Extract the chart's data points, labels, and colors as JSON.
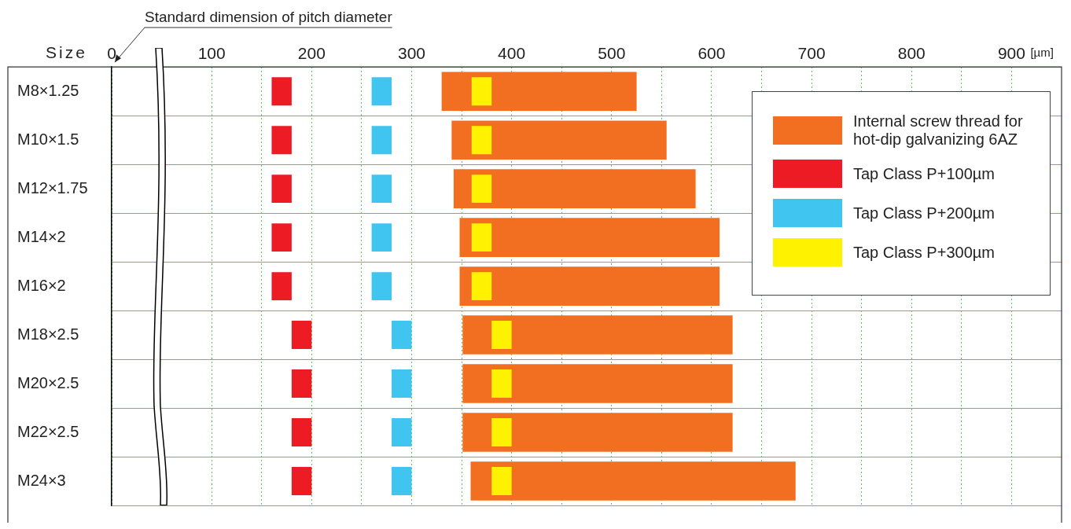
{
  "chart_data": {
    "type": "bar",
    "orientation": "horizontal",
    "ylabel": "Size",
    "xlabel": "[µm]",
    "annotations": [
      "Standard dimension of pitch diameter"
    ],
    "categories": [
      "M8×1.25",
      "M10×1.5",
      "M12×1.75",
      "M14×2",
      "M16×2",
      "M18×2.5",
      "M20×2.5",
      "M22×2.5",
      "M24×3"
    ],
    "series": [
      {
        "name": "Internal screw thread for hot-dip galvanizing 6AZ",
        "color": "#f26f21",
        "base": [
          330,
          340,
          342,
          348,
          348,
          351,
          351,
          351,
          359
        ],
        "values": [
          195,
          215,
          242,
          260,
          260,
          270,
          270,
          270,
          325
        ]
      },
      {
        "name": "Tap Class P+100µm",
        "color": "#ed1c24",
        "base": [
          160,
          160,
          160,
          160,
          160,
          180,
          180,
          180,
          180
        ],
        "values": [
          20,
          20,
          20,
          20,
          20,
          20,
          20,
          20,
          20
        ]
      },
      {
        "name": "Tap Class P+200µm",
        "color": "#40c4f0",
        "base": [
          260,
          260,
          260,
          260,
          260,
          280,
          280,
          280,
          280
        ],
        "values": [
          20,
          20,
          20,
          20,
          20,
          20,
          20,
          20,
          20
        ]
      },
      {
        "name": "Tap Class P+300µm",
        "color": "#fff200",
        "base": [
          360,
          360,
          360,
          360,
          360,
          380,
          380,
          380,
          380
        ],
        "values": [
          20,
          20,
          20,
          20,
          20,
          20,
          20,
          20,
          20
        ]
      }
    ],
    "xlim": [
      0,
      950
    ],
    "xticks": [
      0,
      100,
      {
        "value": 150,
        "label": null
      },
      200,
      {
        "value": 250,
        "label": null
      },
      300,
      {
        "value": 350,
        "label": null
      },
      400,
      {
        "value": 450,
        "label": null
      },
      500,
      {
        "value": 550,
        "label": null
      },
      600,
      {
        "value": 650,
        "label": null
      },
      700,
      {
        "value": 750,
        "label": null
      },
      800,
      {
        "value": 850,
        "label": null
      },
      900
    ],
    "grid": true,
    "legend": "top right"
  }
}
